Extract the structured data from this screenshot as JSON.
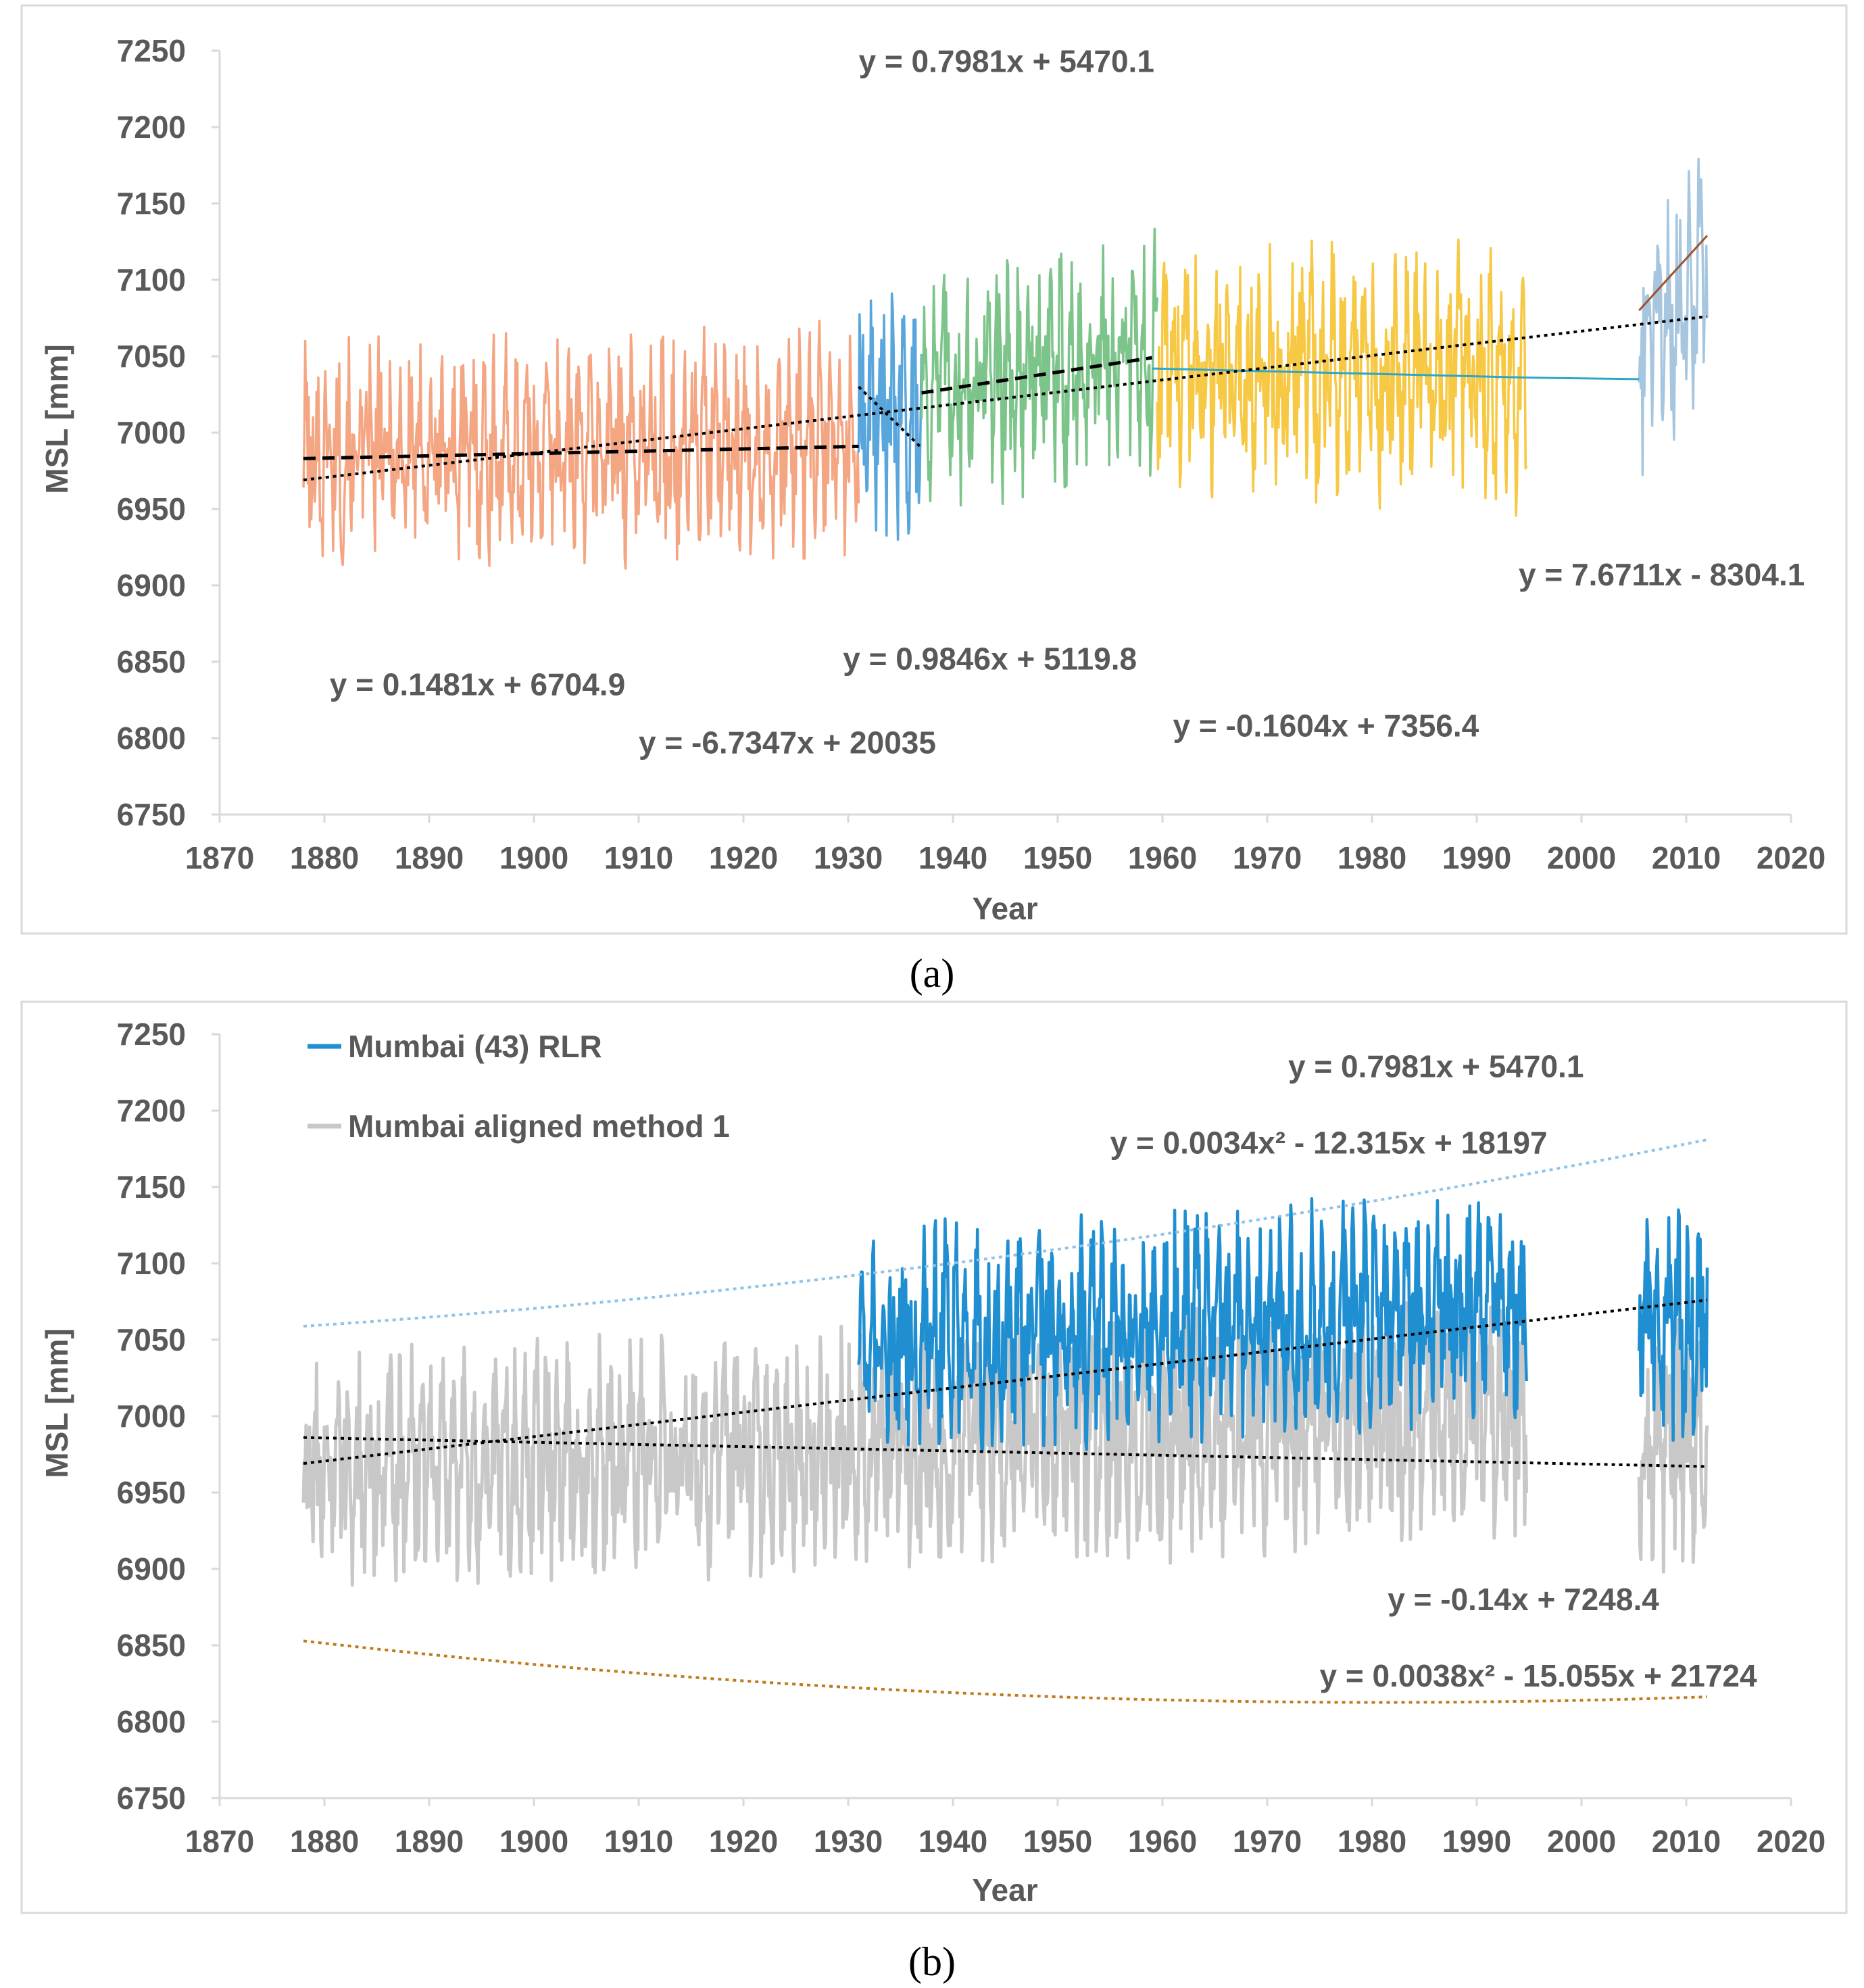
{
  "colors": {
    "orange": "#f4a582",
    "blue": "#58a6dc",
    "green": "#7cc48a",
    "yellow": "#f7c843",
    "lightblue": "#a6c6e0",
    "grey": "#c8c8c8",
    "rlr_blue": "#1f8fd1",
    "trend_black": "#000000",
    "trend_orange": "#c07a1a",
    "trend_lightblue": "#8fc3e8",
    "segment_line": "#2ea7c7",
    "last_trend": "#a0522d"
  },
  "chart_data": [
    {
      "id": "a",
      "type": "line",
      "caption": "(a)",
      "xlabel": "Year",
      "ylabel": "MSL [mm]",
      "xlim": [
        1870,
        2020
      ],
      "ylim": [
        6750,
        7250
      ],
      "xticks": [
        1870,
        1880,
        1890,
        1900,
        1910,
        1920,
        1930,
        1940,
        1950,
        1960,
        1970,
        1980,
        1990,
        2000,
        2010,
        2020
      ],
      "yticks": [
        6750,
        6800,
        6850,
        6900,
        6950,
        7000,
        7050,
        7100,
        7150,
        7200,
        7250
      ],
      "series": [
        {
          "color_key": "orange",
          "range": [
            1878,
            1931
          ],
          "mean": 6990,
          "amplitude": 70,
          "slope": 0.1481
        },
        {
          "color_key": "blue",
          "range": [
            1931,
            1937
          ],
          "mean": 7010,
          "amplitude": 75,
          "slope": 0
        },
        {
          "color_key": "green",
          "range": [
            1937,
            1959.5
          ],
          "mean": 7040,
          "amplitude": 75,
          "slope": 0.7981
        },
        {
          "color_key": "yellow",
          "range": [
            1959.5,
            1994.8
          ],
          "mean": 7040,
          "amplitude": 80,
          "slope": -0.1604
        },
        {
          "color_key": "lightblue",
          "range": [
            2005.5,
            2012
          ],
          "mean": 7080,
          "amplitude": 80,
          "slope": 7.6711
        }
      ],
      "trendlines": [
        {
          "x": [
            1878,
            1931
          ],
          "y": [
            6983,
            6991
          ],
          "style": "dashed",
          "color_key": "trend_black"
        },
        {
          "x": [
            1931,
            1937
          ],
          "y": [
            7030,
            6990
          ],
          "style": "dotted",
          "color_key": "trend_black"
        },
        {
          "x": [
            1937,
            1959
          ],
          "y": [
            7026,
            7049
          ],
          "style": "dashed",
          "color_key": "trend_black"
        },
        {
          "x": [
            1959,
            1995
          ],
          "y": [
            7042,
            7036
          ],
          "style": "solid",
          "color_key": "segment_line"
        },
        {
          "x": [
            1995,
            2005.5
          ],
          "y": [
            7036,
            7035
          ],
          "style": "solid",
          "color_key": "segment_line"
        },
        {
          "x": [
            2005.5,
            2012
          ],
          "y": [
            7080,
            7129
          ],
          "style": "solid",
          "color_key": "last_trend"
        },
        {
          "x": [
            1878,
            2012
          ],
          "y": [
            6969,
            7076
          ],
          "style": "dotted",
          "color_key": "trend_black"
        }
      ],
      "annotations": [
        {
          "text": "y = 0.7981x + 5470.1",
          "x": 1931,
          "y": 7236
        },
        {
          "text": "y = 0.1481x + 6704.9",
          "x": 1880.5,
          "y": 6828
        },
        {
          "text": "y = 0.9846x + 5119.8",
          "x": 1929.5,
          "y": 6845
        },
        {
          "text": "y = -6.7347x + 20035",
          "x": 1910,
          "y": 6790
        },
        {
          "text": "y = -0.1604x + 7356.4",
          "x": 1961,
          "y": 6801
        },
        {
          "text": "y = 7.6711x - 8304.1",
          "x": 1994,
          "y": 6900
        }
      ]
    },
    {
      "id": "b",
      "type": "line",
      "caption": "(b)",
      "xlabel": "Year",
      "ylabel": "MSL [mm]",
      "xlim": [
        1870,
        2020
      ],
      "ylim": [
        6750,
        7250
      ],
      "xticks": [
        1870,
        1880,
        1890,
        1900,
        1910,
        1920,
        1930,
        1940,
        1950,
        1960,
        1970,
        1980,
        1990,
        2000,
        2010,
        2020
      ],
      "yticks": [
        6750,
        6800,
        6850,
        6900,
        6950,
        7000,
        7050,
        7100,
        7150,
        7200,
        7250
      ],
      "legend": [
        {
          "label": "Mumbai (43) RLR",
          "color_key": "rlr_blue"
        },
        {
          "label": "Mumbai aligned method 1",
          "color_key": "grey"
        }
      ],
      "series": [
        {
          "name": "Mumbai aligned method 1",
          "color_key": "grey",
          "ranges": [
            [
              1878,
              1994.8
            ],
            [
              2005.5,
              2012
            ]
          ],
          "mean": 6980,
          "amplitude": 75
        },
        {
          "name": "Mumbai (43) RLR",
          "color_key": "rlr_blue",
          "ranges": [
            [
              1931,
              1994.8
            ],
            [
              2005.5,
              2012
            ]
          ],
          "mean": 7060,
          "amplitude": 70
        }
      ],
      "trendlines": [
        {
          "x": [
            1878,
            2012
          ],
          "y": [
            6969,
            7076
          ],
          "style": "dotted",
          "color_key": "trend_black"
        },
        {
          "x": [
            1878,
            2012
          ],
          "y": [
            6986,
            6967
          ],
          "style": "dotted",
          "color_key": "trend_black"
        },
        {
          "quad": [
            0.0038,
            -15.055,
            21724
          ],
          "range": [
            1878,
            2012
          ],
          "style": "dotted",
          "color_key": "trend_orange"
        },
        {
          "quad": [
            0.0034,
            -12.315,
            18197
          ],
          "range": [
            1878,
            2012
          ],
          "style": "dotted",
          "color_key": "trend_lightblue",
          "offset": -2
        }
      ],
      "annotations": [
        {
          "text": "y = 0.7981x + 5470.1",
          "x": 1972,
          "y": 7222
        },
        {
          "text": "y = 0.0034x² - 12.315x + 18197",
          "x": 1955,
          "y": 7172
        },
        {
          "text": "y = -0.14x + 7248.4",
          "x": 1981.5,
          "y": 6873
        },
        {
          "text": "y = 0.0038x² - 15.055x + 21724",
          "x": 1975,
          "y": 6823
        }
      ]
    }
  ]
}
